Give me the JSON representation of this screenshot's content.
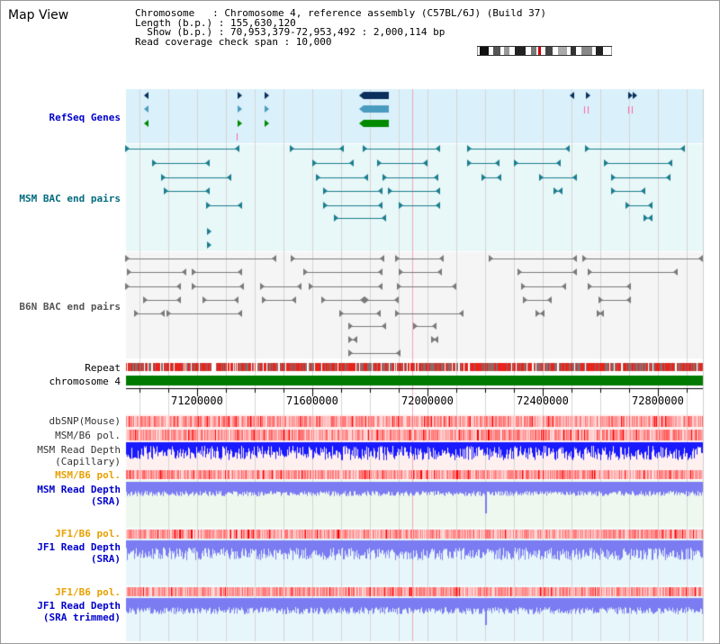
{
  "title": "Map View",
  "info": {
    "chromosome": "Chromosome   : Chromosome 4, reference assembly (C57BL/6J) (Build 37)",
    "length": "Length (b.p.) : 155,630,120",
    "show": "  Show (b.p.) : 70,953,379-72,953,492 : 2,000,114 bp",
    "coverage": "Read coverage check span : 10,000"
  },
  "tracks": {
    "refseq": "RefSeq Genes",
    "msm_bac": "MSM BAC end pairs",
    "b6n_bac": "B6N BAC end pairs",
    "repeat": "Repeat",
    "chromosome": "chromosome 4",
    "dbsnp": "dbSNP(Mouse)",
    "msm_b6_pol_1": "MSM/B6 pol.",
    "msm_depth_cap": "MSM Read Depth",
    "msm_depth_cap_sub": "(Capillary)",
    "msm_b6_pol_2": "MSM/B6 pol.",
    "msm_depth_sra": "MSM Read Depth",
    "msm_depth_sra_sub": "(SRA)",
    "jf1_b6_pol_1": "JF1/B6 pol.",
    "jf1_depth_sra": "JF1 Read Depth",
    "jf1_depth_sra_sub": "(SRA)",
    "jf1_b6_pol_2": "JF1/B6 pol.",
    "jf1_depth_trim": "JF1 Read Depth",
    "jf1_depth_trim_sub": "(SRA trimmed)"
  },
  "axis_ticks": [
    "71200000",
    "71600000",
    "72000000",
    "72400000",
    "72800000"
  ],
  "colors": {
    "refseq_bg": "#daf0fa",
    "msm_bac_bg": "#e8f7f7",
    "b6n_bac_bg": "#f5f5f5",
    "repeat_red": "#e8231b",
    "chromosome_green": "#007a00",
    "depth_blue": "#1a1aff",
    "depth_light": "#7b7bf2"
  }
}
